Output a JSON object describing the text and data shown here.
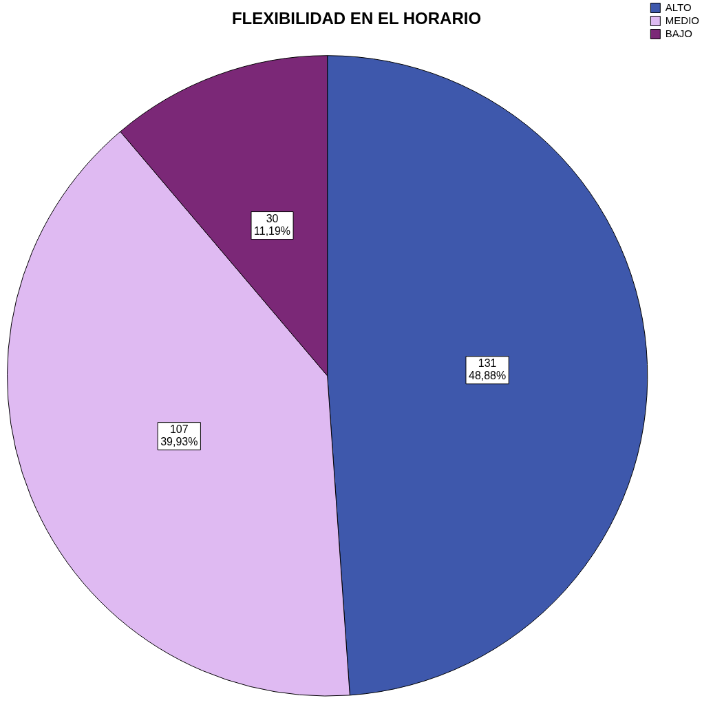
{
  "chart_data": {
    "type": "pie",
    "title": "FLEXIBILIDAD EN EL HORARIO",
    "categories": [
      "ALTO",
      "MEDIO",
      "BAJO"
    ],
    "values": [
      131,
      107,
      30
    ],
    "colors": [
      "#3e58ac",
      "#dfbaf2",
      "#7b2877"
    ],
    "value_labels": [
      "131\n48,88%",
      "107\n39,93%",
      "30\n11,19%"
    ],
    "legend": "top right"
  }
}
